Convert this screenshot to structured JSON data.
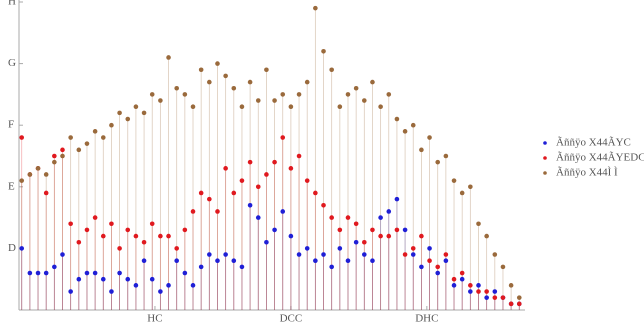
{
  "chart_data": {
    "type": "stem",
    "x": [
      1,
      4,
      7,
      10,
      13,
      16,
      19,
      22,
      25,
      28,
      31,
      34,
      37,
      40,
      43,
      46,
      49,
      52,
      55,
      58,
      61,
      64,
      67,
      70,
      73,
      76,
      79,
      82,
      85,
      88,
      91,
      94,
      97,
      100,
      103,
      106,
      109,
      112,
      115,
      118,
      121,
      124,
      127,
      130,
      133,
      136,
      139,
      142,
      145,
      148,
      151,
      154,
      157,
      160,
      163,
      166,
      169,
      172,
      175,
      178,
      181,
      184
    ],
    "series": [
      {
        "name": "Ãññÿo X44ÃYC",
        "color": "#1f1fd6",
        "values": [
          1.0,
          0.6,
          0.6,
          0.6,
          0.7,
          0.9,
          0.3,
          0.5,
          0.6,
          0.6,
          0.5,
          0.3,
          0.6,
          0.5,
          0.4,
          0.8,
          0.5,
          0.3,
          0.4,
          0.8,
          0.6,
          0.4,
          0.7,
          0.9,
          0.8,
          0.9,
          0.8,
          0.7,
          1.7,
          1.5,
          1.1,
          1.3,
          1.6,
          1.2,
          0.9,
          1.0,
          0.8,
          0.9,
          0.7,
          1.0,
          0.8,
          1.1,
          0.9,
          0.8,
          1.5,
          1.6,
          1.8,
          1.3,
          0.9,
          0.7,
          1.0,
          0.6,
          0.8,
          0.4,
          0.5,
          0.3,
          0.4,
          0.2,
          0.3,
          0.2,
          0.1,
          0.1
        ]
      },
      {
        "name": "Ãññÿo X44ÃYEDCC",
        "color": "#e0191f",
        "values": [
          2.8,
          2.2,
          2.3,
          1.9,
          2.5,
          2.6,
          1.4,
          1.1,
          1.3,
          1.5,
          1.2,
          1.4,
          1.0,
          1.3,
          1.2,
          1.1,
          1.4,
          1.2,
          1.2,
          1.0,
          1.3,
          1.6,
          1.9,
          1.8,
          1.6,
          2.3,
          1.9,
          2.1,
          2.4,
          2.0,
          2.2,
          2.4,
          2.8,
          2.3,
          2.5,
          2.1,
          1.9,
          1.7,
          1.5,
          1.3,
          1.5,
          1.4,
          1.1,
          1.3,
          1.2,
          1.2,
          1.3,
          0.9,
          1.0,
          1.2,
          0.8,
          0.7,
          0.9,
          0.5,
          0.6,
          0.4,
          0.3,
          0.3,
          0.2,
          0.2,
          0.1,
          0.1
        ]
      },
      {
        "name": "Ãññÿo X44Ì Ì",
        "color": "#9a6a3c",
        "values": [
          2.1,
          2.2,
          2.3,
          2.2,
          2.4,
          2.5,
          2.8,
          2.6,
          2.7,
          2.9,
          2.8,
          3.0,
          3.2,
          3.1,
          3.3,
          3.2,
          3.5,
          3.4,
          4.1,
          3.6,
          3.5,
          3.3,
          3.9,
          3.7,
          4.0,
          3.8,
          3.6,
          3.3,
          3.7,
          3.4,
          3.9,
          3.4,
          3.5,
          3.3,
          3.5,
          3.7,
          4.9,
          4.2,
          3.9,
          3.3,
          3.5,
          3.6,
          3.4,
          3.7,
          3.3,
          3.5,
          3.1,
          2.9,
          3.0,
          2.6,
          2.8,
          2.4,
          2.5,
          2.1,
          1.9,
          2.0,
          1.4,
          1.2,
          0.9,
          0.7,
          0.4,
          0.2
        ]
      }
    ],
    "xlim": [
      0,
      185
    ],
    "ylim": [
      0,
      5
    ],
    "xticks": [
      {
        "value": 50,
        "label": "HC"
      },
      {
        "value": 100,
        "label": "DCC"
      },
      {
        "value": 150,
        "label": "DHC"
      }
    ],
    "yticks": [
      {
        "value": 1,
        "label": "D"
      },
      {
        "value": 2,
        "label": "E"
      },
      {
        "value": 3,
        "label": "F"
      },
      {
        "value": 4,
        "label": "G"
      },
      {
        "value": 5,
        "label": "H"
      }
    ]
  }
}
